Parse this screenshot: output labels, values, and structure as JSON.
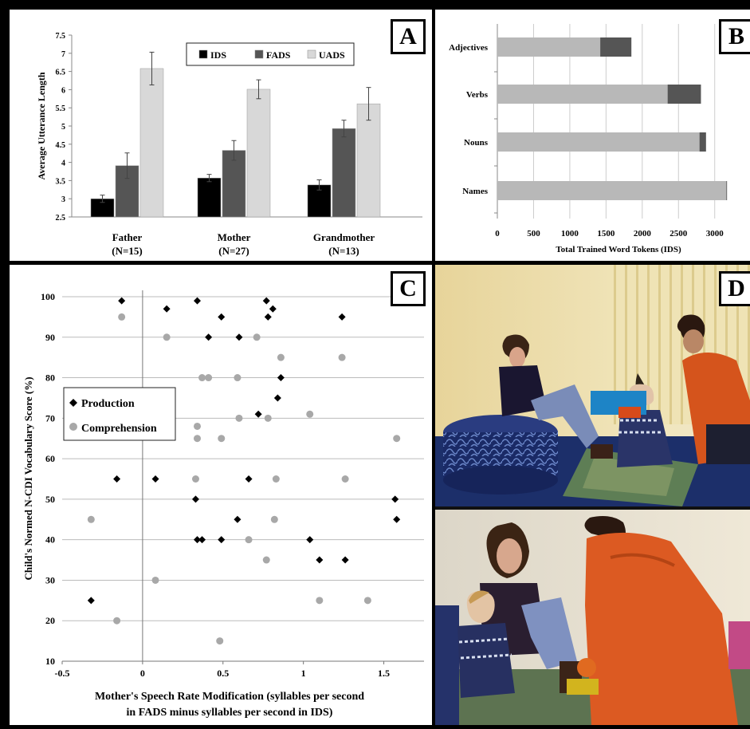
{
  "panel_letters": {
    "a": "A",
    "b": "B",
    "c": "C",
    "d": "D"
  },
  "colors": {
    "ids": "#000000",
    "fads": "#555555",
    "uads": "#d8d8d8",
    "nouns_base": "#b8b8b8",
    "nouns_extra": "#555555",
    "production": "#000000",
    "comprehension": "#a8a8a8"
  },
  "chart_data": [
    {
      "id": "A",
      "type": "bar",
      "ylabel": "Average Utterance Length",
      "ylim": [
        2.5,
        7.5
      ],
      "yticks": [
        "2.5",
        "3",
        "3.5",
        "4",
        "4.5",
        "5",
        "5.5",
        "6",
        "6.5",
        "7",
        "7.5"
      ],
      "categories": [
        {
          "name": "Father",
          "n": "(N=15)"
        },
        {
          "name": "Mother",
          "n": "(N=27)"
        },
        {
          "name": "Grandmother",
          "n": "(N=13)"
        }
      ],
      "series": [
        {
          "name": "IDS",
          "values": [
            3.0,
            3.57,
            3.38
          ],
          "errors": [
            0.1,
            0.1,
            0.14
          ]
        },
        {
          "name": "FADS",
          "values": [
            3.91,
            4.33,
            4.93
          ],
          "errors": [
            0.35,
            0.27,
            0.23
          ]
        },
        {
          "name": "UADS",
          "values": [
            6.58,
            6.01,
            5.61
          ],
          "errors": [
            0.45,
            0.26,
            0.45
          ]
        }
      ],
      "legend": "top-center",
      "grid": false
    },
    {
      "id": "B",
      "type": "bar",
      "orientation": "horizontal",
      "xlabel": "Total Trained Word Tokens (IDS)",
      "xlim": [
        0,
        3300
      ],
      "xticks": [
        "0",
        "500",
        "1000",
        "1500",
        "2000",
        "2500",
        "3000"
      ],
      "categories": [
        "Adjectives",
        "Verbs",
        "Nouns",
        "Names"
      ],
      "series": [
        {
          "values": [
            1420,
            2350,
            2790,
            3160
          ]
        },
        {
          "values": [
            430,
            460,
            90,
            10
          ]
        }
      ],
      "grid": true
    },
    {
      "id": "C",
      "type": "scatter",
      "xlabel_line1": "Mother's Speech Rate Modification (syllables per second",
      "xlabel_line2": "in FADS minus syllables per second in IDS)",
      "ylabel": "Child's Normed N-CDI Vocabulary Score (%)",
      "xlim": [
        -0.5,
        1.75
      ],
      "ylim": [
        10,
        100
      ],
      "xticks": [
        "-0.5",
        "0",
        "0.5",
        "1",
        "1.5"
      ],
      "yticks": [
        "10",
        "20",
        "30",
        "40",
        "50",
        "60",
        "70",
        "80",
        "90",
        "100"
      ],
      "grid": true,
      "legend": "left",
      "series": [
        {
          "name": "Production",
          "marker": "diamond",
          "points": [
            [
              -0.13,
              99
            ],
            [
              0.34,
              99
            ],
            [
              0.77,
              99
            ],
            [
              0.15,
              97
            ],
            [
              0.81,
              97
            ],
            [
              0.49,
              95
            ],
            [
              0.78,
              95
            ],
            [
              1.24,
              95
            ],
            [
              0.41,
              90
            ],
            [
              0.6,
              90
            ],
            [
              0.86,
              80
            ],
            [
              0.84,
              75
            ],
            [
              0.72,
              71
            ],
            [
              -0.16,
              55
            ],
            [
              0.08,
              55
            ],
            [
              0.66,
              55
            ],
            [
              0.33,
              50
            ],
            [
              1.57,
              50
            ],
            [
              0.59,
              45
            ],
            [
              1.58,
              45
            ],
            [
              0.34,
              40
            ],
            [
              0.37,
              40
            ],
            [
              0.49,
              40
            ],
            [
              1.04,
              40
            ],
            [
              1.1,
              35
            ],
            [
              1.26,
              35
            ],
            [
              -0.32,
              25
            ]
          ]
        },
        {
          "name": "Comprehension",
          "marker": "circle",
          "points": [
            [
              -0.13,
              95
            ],
            [
              0.15,
              90
            ],
            [
              0.71,
              90
            ],
            [
              0.86,
              85
            ],
            [
              1.24,
              85
            ],
            [
              0.37,
              80
            ],
            [
              0.41,
              80
            ],
            [
              0.59,
              80
            ],
            [
              1.04,
              71
            ],
            [
              0.34,
              68
            ],
            [
              0.6,
              70
            ],
            [
              0.78,
              70
            ],
            [
              0.34,
              65
            ],
            [
              0.49,
              65
            ],
            [
              1.58,
              65
            ],
            [
              0.33,
              55
            ],
            [
              0.83,
              55
            ],
            [
              1.26,
              55
            ],
            [
              -0.32,
              45
            ],
            [
              0.82,
              45
            ],
            [
              0.66,
              40
            ],
            [
              0.77,
              35
            ],
            [
              0.08,
              30
            ],
            [
              1.1,
              25
            ],
            [
              1.4,
              25
            ],
            [
              -0.16,
              20
            ],
            [
              0.48,
              15
            ]
          ]
        }
      ]
    }
  ]
}
